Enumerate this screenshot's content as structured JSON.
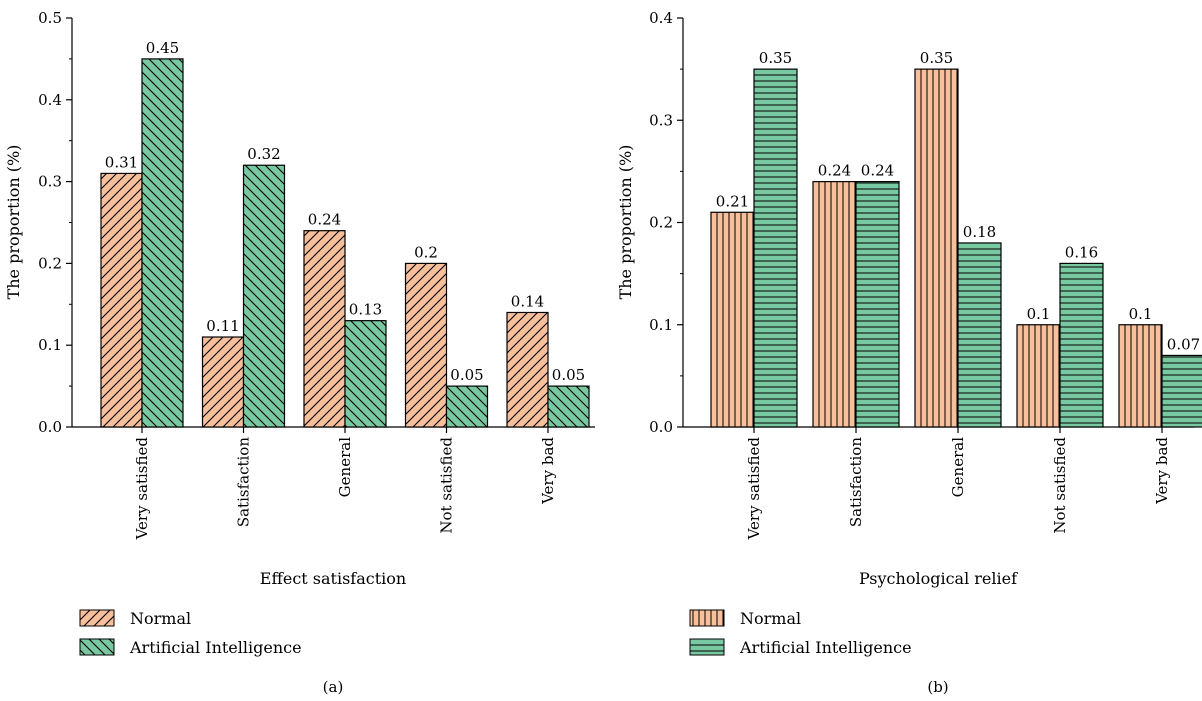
{
  "colors": {
    "normal": "#f8c09a",
    "ai": "#78c9a1",
    "stroke": "#000000"
  },
  "chart_data": [
    {
      "type": "bar",
      "panel_label": "(a)",
      "xlabel": "Effect satisfaction",
      "ylabel": "The proportion (%)",
      "ylim": [
        0,
        0.5
      ],
      "yticks": [
        "0.0",
        "0.1",
        "0.2",
        "0.3",
        "0.4",
        "0.5"
      ],
      "categories": [
        "Very satisfied",
        "Satisfaction",
        "General",
        "Not satisfied",
        "Very bad"
      ],
      "series": [
        {
          "name": "Normal",
          "values": [
            0.31,
            0.11,
            0.24,
            0.2,
            0.14
          ],
          "labels": [
            "0.31",
            "0.11",
            "0.24",
            "0.2",
            "0.14"
          ],
          "pattern": "diagonal-forward"
        },
        {
          "name": "Artificial Intelligence",
          "values": [
            0.45,
            0.32,
            0.13,
            0.05,
            0.05
          ],
          "labels": [
            "0.45",
            "0.32",
            "0.13",
            "0.05",
            "0.05"
          ],
          "pattern": "diagonal-backward"
        }
      ],
      "grid": false,
      "legend": "bottom-left"
    },
    {
      "type": "bar",
      "panel_label": "(b)",
      "xlabel": "Psychological relief",
      "ylabel": "The proportion (%)",
      "ylim": [
        0,
        0.4
      ],
      "yticks": [
        "0.0",
        "0.1",
        "0.2",
        "0.3",
        "0.4"
      ],
      "categories": [
        "Very satisfied",
        "Satisfaction",
        "General",
        "Not satisfied",
        "Very bad"
      ],
      "series": [
        {
          "name": "Normal",
          "values": [
            0.21,
            0.24,
            0.35,
            0.1,
            0.1
          ],
          "labels": [
            "0.21",
            "0.24",
            "0.35",
            "0.1",
            "0.1"
          ],
          "pattern": "vertical"
        },
        {
          "name": "Artificial Intelligence",
          "values": [
            0.35,
            0.24,
            0.18,
            0.16,
            0.07
          ],
          "labels": [
            "0.35",
            "0.24",
            "0.18",
            "0.16",
            "0.07"
          ],
          "pattern": "horizontal"
        }
      ],
      "grid": false,
      "legend": "bottom-left"
    }
  ]
}
